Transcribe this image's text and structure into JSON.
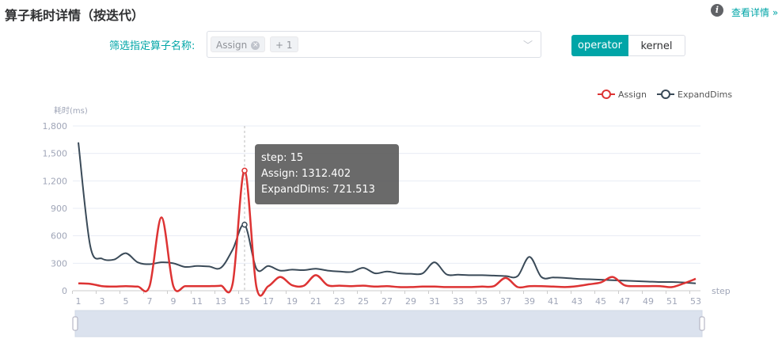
{
  "header": {
    "title": "算子耗时详情（按迭代）",
    "more_link": "查看详情 »",
    "info_icon": "info-icon"
  },
  "filter": {
    "label": "筛选指定算子名称:",
    "tags": [
      "Assign",
      "+ 1"
    ],
    "dropdown_icon": "chevron-down-icon"
  },
  "toggle": {
    "options": [
      "operator",
      "kernel"
    ],
    "selected": "operator",
    "accent": "#00a5a7"
  },
  "tooltip": {
    "step": "step: 15",
    "assign": "Assign:  1312.402",
    "expand": "ExpandDims:  721.513"
  },
  "chart_data": {
    "type": "line",
    "ylabel": "耗时(ms)",
    "xlabel": "step",
    "ylim": [
      0,
      1800
    ],
    "yticks": [
      0,
      300,
      600,
      900,
      1200,
      1500,
      1800
    ],
    "grid": true,
    "legend": "top-right",
    "smooth": true,
    "x": [
      1,
      2,
      3,
      4,
      5,
      6,
      7,
      8,
      9,
      10,
      11,
      12,
      13,
      14,
      15,
      16,
      17,
      18,
      19,
      20,
      21,
      22,
      23,
      24,
      25,
      26,
      27,
      28,
      29,
      30,
      31,
      32,
      33,
      34,
      35,
      36,
      37,
      38,
      39,
      40,
      41,
      42,
      43,
      44,
      45,
      46,
      47,
      48,
      49,
      50,
      51,
      52,
      53
    ],
    "series": [
      {
        "name": "Assign",
        "color": "#dd3333",
        "values": [
          80,
          75,
          50,
          45,
          50,
          45,
          50,
          800,
          50,
          50,
          50,
          50,
          55,
          80,
          1312.402,
          40,
          50,
          150,
          60,
          55,
          170,
          60,
          55,
          50,
          55,
          45,
          50,
          40,
          40,
          45,
          45,
          40,
          40,
          40,
          45,
          50,
          140,
          40,
          50,
          50,
          45,
          40,
          50,
          70,
          90,
          150,
          60,
          50,
          50,
          50,
          40,
          80,
          130
        ]
      },
      {
        "name": "ExpandDims",
        "color": "#3a4a58",
        "values": [
          1620,
          490,
          350,
          340,
          410,
          310,
          290,
          310,
          300,
          260,
          270,
          265,
          250,
          450,
          721.513,
          240,
          270,
          220,
          230,
          225,
          240,
          220,
          210,
          205,
          250,
          190,
          210,
          190,
          185,
          190,
          310,
          180,
          175,
          170,
          170,
          165,
          160,
          160,
          370,
          150,
          145,
          140,
          130,
          125,
          120,
          115,
          110,
          105,
          100,
          95,
          95,
          90,
          80
        ]
      }
    ],
    "highlight_step": 15
  }
}
